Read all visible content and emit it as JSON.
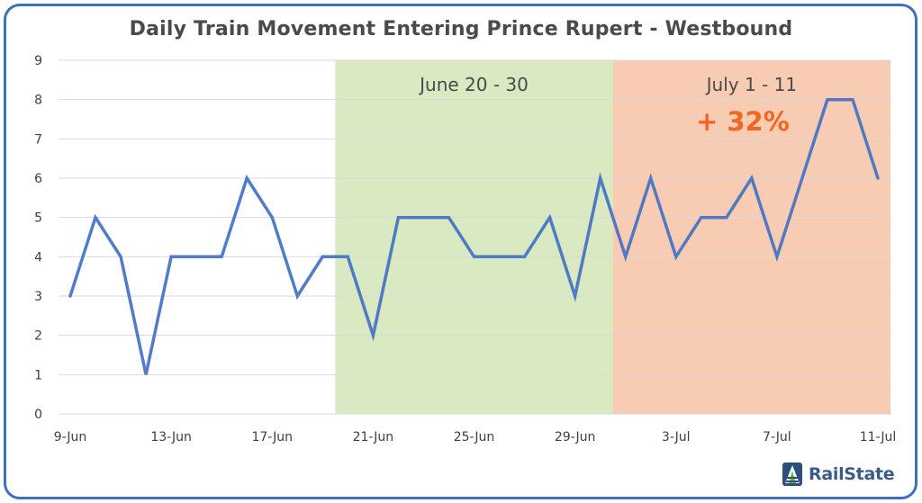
{
  "title": "Daily Train Movement Entering Prince Rupert - Westbound",
  "brand": {
    "name": "RailState",
    "icon": "railstate-logo-icon"
  },
  "colors": {
    "frame": "#3f6fc0",
    "line": "#4472c4",
    "grid": "#d9d9d9",
    "axis_text": "#404040",
    "band_june": "#d9e9c1",
    "band_july": "#f8ccb3",
    "band_june_text": "#4a4a4a",
    "band_july_text": "#4a4a4a",
    "change_text": "#f26522"
  },
  "chart_data": {
    "type": "line",
    "title": "Daily Train Movement Entering Prince Rupert - Westbound",
    "xlabel": "",
    "ylabel": "",
    "ylim": [
      0,
      9
    ],
    "yticks": [
      0,
      1,
      2,
      3,
      4,
      5,
      6,
      7,
      8,
      9
    ],
    "grid": true,
    "legend": "none",
    "x": [
      "9-Jun",
      "10-Jun",
      "11-Jun",
      "12-Jun",
      "13-Jun",
      "14-Jun",
      "15-Jun",
      "16-Jun",
      "17-Jun",
      "18-Jun",
      "19-Jun",
      "20-Jun",
      "21-Jun",
      "22-Jun",
      "23-Jun",
      "24-Jun",
      "25-Jun",
      "26-Jun",
      "27-Jun",
      "28-Jun",
      "29-Jun",
      "30-Jun",
      "1-Jul",
      "2-Jul",
      "3-Jul",
      "4-Jul",
      "5-Jul",
      "6-Jul",
      "7-Jul",
      "8-Jul",
      "9-Jul",
      "10-Jul",
      "11-Jul"
    ],
    "xtick_labels": [
      "9-Jun",
      "13-Jun",
      "17-Jun",
      "21-Jun",
      "25-Jun",
      "29-Jun",
      "3-Jul",
      "7-Jul",
      "11-Jul"
    ],
    "series": [
      {
        "values": [
          3,
          5,
          4,
          1,
          4,
          4,
          4,
          6,
          5,
          3,
          4,
          4,
          2,
          5,
          5,
          5,
          4,
          4,
          4,
          5,
          3,
          6,
          4,
          6,
          4,
          5,
          5,
          6,
          4,
          6,
          8,
          8,
          6
        ]
      }
    ],
    "bands": [
      {
        "label": "June 20 - 30",
        "from": "20-Jun",
        "to": "30-Jun"
      },
      {
        "label": "July 1 - 11",
        "from": "1-Jul",
        "to": "11-Jul",
        "annotation": "+ 32%"
      }
    ]
  }
}
